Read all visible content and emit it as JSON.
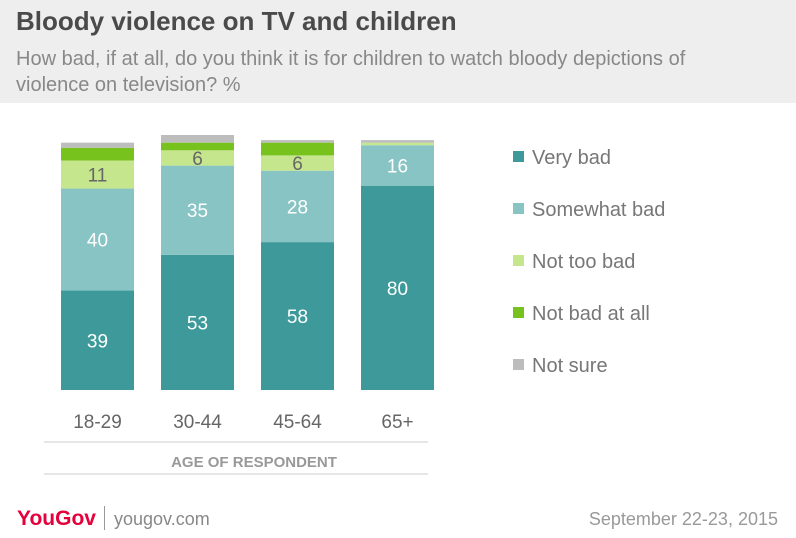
{
  "title": "Bloody violence on TV and children",
  "subtitle": "How bad, if at all, do you think it is for children to watch bloody depictions of violence on television? %",
  "colors": {
    "very_bad": "#3e9a9a",
    "somewhat_bad": "#88c4c4",
    "not_too_bad": "#c6e68e",
    "not_bad_at_all": "#78c21e",
    "not_sure": "#bdbdbd"
  },
  "chart_data": {
    "type": "bar",
    "stacked": true,
    "categories": [
      "18-29",
      "30-44",
      "45-64",
      "65+"
    ],
    "xlabel": "AGE OF RESPONDENT",
    "ylabel": "",
    "legend_position": "right",
    "series": [
      {
        "name": "Very bad",
        "values": [
          39,
          53,
          58,
          80
        ],
        "labels": [
          "39",
          "53",
          "58",
          "80"
        ]
      },
      {
        "name": "Somewhat bad",
        "values": [
          40,
          35,
          28,
          16
        ],
        "labels": [
          "40",
          "35",
          "28",
          "16"
        ]
      },
      {
        "name": "Not too bad",
        "values": [
          11,
          6,
          6,
          1
        ],
        "labels": [
          "11",
          "6",
          "6",
          ""
        ]
      },
      {
        "name": "Not bad at all",
        "values": [
          5,
          3,
          5,
          0
        ],
        "labels": [
          "",
          "",
          "",
          ""
        ]
      },
      {
        "name": "Not sure",
        "values": [
          2,
          3,
          1,
          1
        ],
        "labels": [
          "",
          "",
          "",
          ""
        ]
      }
    ]
  },
  "footer": {
    "logo": "YouGov",
    "url": "yougov.com",
    "date": "September 22-23, 2015"
  }
}
